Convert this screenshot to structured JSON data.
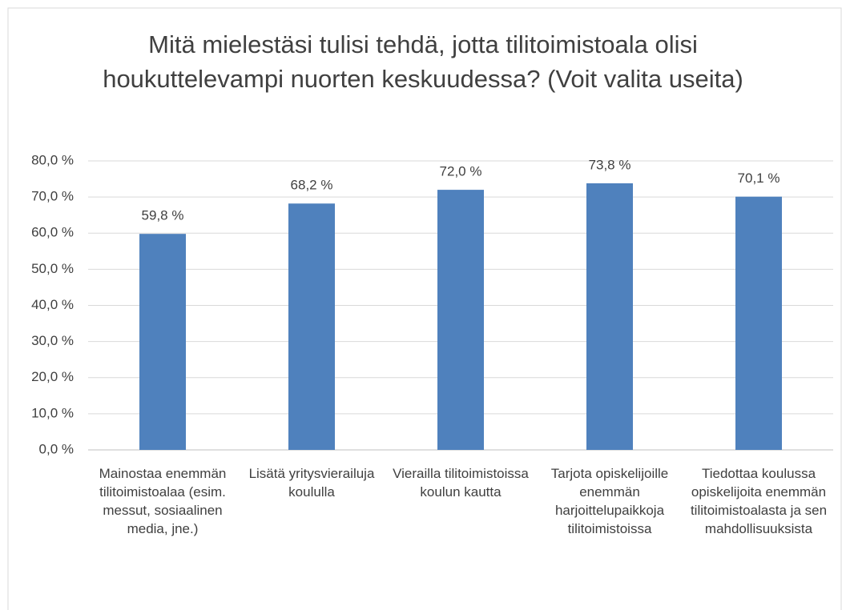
{
  "chart_data": {
    "type": "bar",
    "title": "Mitä mielestäsi tulisi tehdä, jotta tilitoimistoala olisi houkuttelevampi nuorten keskuudessa? (Voit valita useita)",
    "categories": [
      "Mainostaa enemmän tilitoimistoalaa (esim. messut, sosiaalinen media, jne.)",
      "Lisätä yritysvierailuja koululla",
      "Vierailla tilitoimistoissa koulun kautta",
      "Tarjota opiskelijoille enemmän harjoittelupaikkoja tilitoimistoissa",
      "Tiedottaa koulussa opiskelijoita enemmän tilitoimistoalasta ja sen mahdollisuuksista"
    ],
    "values": [
      59.8,
      68.2,
      72.0,
      73.8,
      70.1
    ],
    "value_labels": [
      "59,8 %",
      "68,2 %",
      "72,0 %",
      "73,8 %",
      "70,1 %"
    ],
    "color": "#4f81bd",
    "ylim": [
      0,
      80
    ],
    "yticks": [
      {
        "value": 0,
        "label": "0,0 %"
      },
      {
        "value": 10,
        "label": "10,0 %"
      },
      {
        "value": 20,
        "label": "20,0 %"
      },
      {
        "value": 30,
        "label": "30,0 %"
      },
      {
        "value": 40,
        "label": "40,0 %"
      },
      {
        "value": 50,
        "label": "50,0 %"
      },
      {
        "value": 60,
        "label": "60,0 %"
      },
      {
        "value": 70,
        "label": "70,0 %"
      },
      {
        "value": 80,
        "label": "80,0 %"
      }
    ],
    "grid": true
  }
}
